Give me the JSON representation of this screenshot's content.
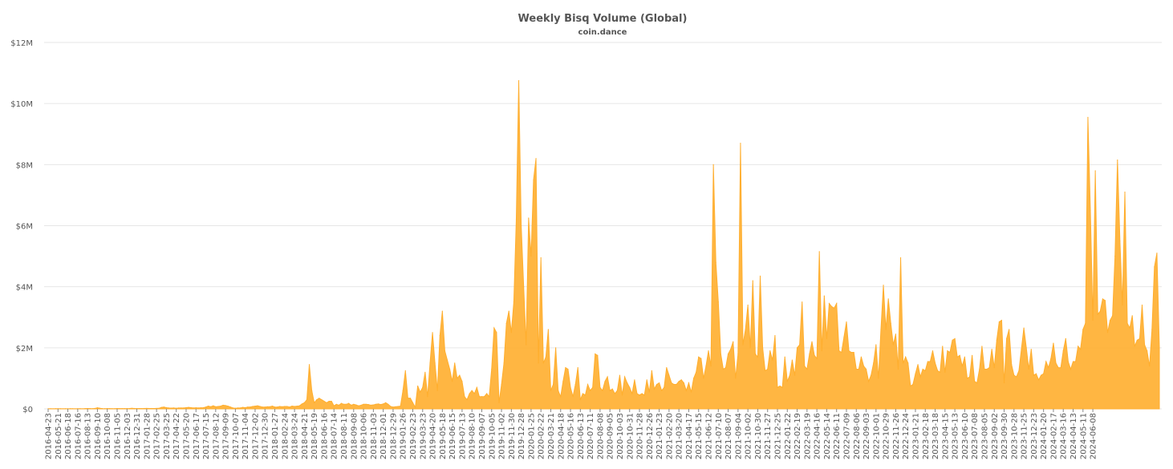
{
  "chart_data": {
    "type": "area",
    "title": "Weekly Bisq Volume (Global)",
    "subtitle": "coin.dance",
    "xlabel": "",
    "ylabel": "",
    "ylim": [
      0,
      12000000
    ],
    "yticks": [
      {
        "value": 0,
        "label": "$0"
      },
      {
        "value": 2000000,
        "label": "$2M"
      },
      {
        "value": 4000000,
        "label": "$4M"
      },
      {
        "value": 6000000,
        "label": "$6M"
      },
      {
        "value": 8000000,
        "label": "$8M"
      },
      {
        "value": 10000000,
        "label": "$10M"
      },
      {
        "value": 12000000,
        "label": "$12M"
      }
    ],
    "grid": true,
    "legend": "none",
    "color": "#ffae2e",
    "start_date": "2016-04-23",
    "x_tick_every": 4,
    "values": [
      0.003,
      0.005,
      0.004,
      0.006,
      0.005,
      0.005,
      0.004,
      0.005,
      0.004,
      0.006,
      0.005,
      0.004,
      0.005,
      0.006,
      0.004,
      0.009,
      0.012,
      0.01,
      0.008,
      0.015,
      0.035,
      0.02,
      0.01,
      0.008,
      0.011,
      0.009,
      0.007,
      0.008,
      0.012,
      0.01,
      0.009,
      0.011,
      0.01,
      0.012,
      0.018,
      0.014,
      0.011,
      0.012,
      0.01,
      0.013,
      0.015,
      0.013,
      0.014,
      0.012,
      0.015,
      0.018,
      0.05,
      0.06,
      0.04,
      0.03,
      0.025,
      0.03,
      0.02,
      0.03,
      0.03,
      0.03,
      0.04,
      0.05,
      0.04,
      0.03,
      0.035,
      0.03,
      0.035,
      0.04,
      0.06,
      0.09,
      0.07,
      0.1,
      0.07,
      0.08,
      0.09,
      0.12,
      0.11,
      0.09,
      0.06,
      0.03,
      0.02,
      0.03,
      0.03,
      0.05,
      0.04,
      0.06,
      0.06,
      0.08,
      0.09,
      0.1,
      0.08,
      0.06,
      0.06,
      0.07,
      0.07,
      0.09,
      0.06,
      0.06,
      0.08,
      0.07,
      0.08,
      0.08,
      0.06,
      0.09,
      0.08,
      0.09,
      0.1,
      0.16,
      0.2,
      0.3,
      1.45,
      0.6,
      0.2,
      0.3,
      0.35,
      0.3,
      0.25,
      0.2,
      0.25,
      0.25,
      0.1,
      0.15,
      0.12,
      0.18,
      0.15,
      0.15,
      0.18,
      0.12,
      0.15,
      0.13,
      0.1,
      0.12,
      0.15,
      0.15,
      0.14,
      0.12,
      0.13,
      0.15,
      0.16,
      0.14,
      0.16,
      0.2,
      0.15,
      0.08,
      0.06,
      0.07,
      0.08,
      0.09,
      0.6,
      1.25,
      0.35,
      0.35,
      0.2,
      0.05,
      0.75,
      0.55,
      0.7,
      1.2,
      0.4,
      1.5,
      2.5,
      1.5,
      0.6,
      2.4,
      3.2,
      1.9,
      1.6,
      1.3,
      0.9,
      1.5,
      1.0,
      1.1,
      0.9,
      0.4,
      0.3,
      0.5,
      0.6,
      0.5,
      0.7,
      0.4,
      0.4,
      0.4,
      0.5,
      0.4,
      1.3,
      2.65,
      2.5,
      0.2,
      0.8,
      1.5,
      2.8,
      3.2,
      2.5,
      3.5,
      6.2,
      10.75,
      6.0,
      4.0,
      2.1,
      6.25,
      5.0,
      7.5,
      8.2,
      1.5,
      4.95,
      1.5,
      1.7,
      2.6,
      0.6,
      0.8,
      2.0,
      0.6,
      0.4,
      0.9,
      1.35,
      1.3,
      0.7,
      0.4,
      0.8,
      1.35,
      0.3,
      0.5,
      0.45,
      0.8,
      0.6,
      0.7,
      1.8,
      1.75,
      0.7,
      0.6,
      0.9,
      1.05,
      0.6,
      0.65,
      0.5,
      0.6,
      1.1,
      0.45,
      1.05,
      0.85,
      0.7,
      0.5,
      0.95,
      0.5,
      0.45,
      0.5,
      0.45,
      0.95,
      0.55,
      1.25,
      0.65,
      0.8,
      0.85,
      0.6,
      0.7,
      1.35,
      1.1,
      0.85,
      0.8,
      0.8,
      0.9,
      0.95,
      0.85,
      0.6,
      0.85,
      0.55,
      1.0,
      1.2,
      1.7,
      1.65,
      1.0,
      1.4,
      1.9,
      1.4,
      8.0,
      4.8,
      3.5,
      1.8,
      1.3,
      1.35,
      1.8,
      1.95,
      2.2,
      1.0,
      1.8,
      8.7,
      2.1,
      2.6,
      3.4,
      2.0,
      4.2,
      1.8,
      1.7,
      4.35,
      2.0,
      1.25,
      1.3,
      1.9,
      1.6,
      2.4,
      0.7,
      0.75,
      0.7,
      1.7,
      0.9,
      1.1,
      1.6,
      1.1,
      2.0,
      2.1,
      3.5,
      1.4,
      1.3,
      1.8,
      2.2,
      1.75,
      1.65,
      5.15,
      1.9,
      3.7,
      2.3,
      3.45,
      3.35,
      3.3,
      3.45,
      1.9,
      1.85,
      2.35,
      2.85,
      1.9,
      1.85,
      1.85,
      1.3,
      1.3,
      1.7,
      1.4,
      1.3,
      0.9,
      1.1,
      1.5,
      2.1,
      1.0,
      2.6,
      4.05,
      2.6,
      3.6,
      2.8,
      2.1,
      2.45,
      1.3,
      4.95,
      1.5,
      1.7,
      1.5,
      0.75,
      0.8,
      1.15,
      1.45,
      1.05,
      1.3,
      1.25,
      1.55,
      1.55,
      1.9,
      1.5,
      1.25,
      1.2,
      2.05,
      1.2,
      1.9,
      1.85,
      2.25,
      2.3,
      1.7,
      1.75,
      1.4,
      1.7,
      1.0,
      1.05,
      1.75,
      0.9,
      0.85,
      1.3,
      2.05,
      1.3,
      1.3,
      1.35,
      1.95,
      1.35,
      2.25,
      2.85,
      2.9,
      0.85,
      2.3,
      2.6,
      1.45,
      1.1,
      1.05,
      1.25,
      1.95,
      2.65,
      2.0,
      1.3,
      1.95,
      1.1,
      1.15,
      0.95,
      1.1,
      1.15,
      1.55,
      1.35,
      1.65,
      2.15,
      1.5,
      1.35,
      1.35,
      1.9,
      2.3,
      1.55,
      1.3,
      1.55,
      1.55,
      2.05,
      1.95,
      2.6,
      2.8,
      9.55,
      6.5,
      2.9,
      7.8,
      3.1,
      3.2,
      3.6,
      3.55,
      2.5,
      2.9,
      3.05,
      5.0,
      8.15,
      5.5,
      3.4,
      7.1,
      2.8,
      2.65,
      3.05,
      2.05,
      2.25,
      2.3,
      3.4,
      2.1,
      1.9,
      1.4,
      2.6,
      4.65,
      5.1,
      2.0
    ],
    "value_unit": "USD millions",
    "x_tick_labels": [
      "2016-04-23",
      "2016-05-21",
      "2016-06-18",
      "2016-07-16",
      "2016-08-13",
      "2016-09-10",
      "2016-10-08",
      "2016-11-05",
      "2016-12-03",
      "2016-12-31",
      "2017-01-28",
      "2017-02-25",
      "2017-03-25",
      "2017-04-22",
      "2017-05-20",
      "2017-06-17",
      "2017-07-15",
      "2017-08-12",
      "2017-09-09",
      "2017-10-07",
      "2017-11-04",
      "2017-12-02",
      "2017-12-30",
      "2018-01-27",
      "2018-02-24",
      "2018-03-24",
      "2018-04-21",
      "2018-05-19",
      "2018-06-16",
      "2018-07-14",
      "2018-08-11",
      "2018-09-08",
      "2018-10-06",
      "2018-11-03",
      "2018-12-01",
      "2018-12-29",
      "2019-01-26",
      "2019-02-23",
      "2019-03-23",
      "2019-04-20",
      "2019-05-18",
      "2019-06-15",
      "2019-07-13",
      "2019-08-10",
      "2019-09-07",
      "2019-10-05",
      "2019-11-02",
      "2019-11-30",
      "2019-12-28",
      "2020-01-25",
      "2020-02-22",
      "2020-03-21",
      "2020-04-18",
      "2020-05-16",
      "2020-06-13",
      "2020-07-11",
      "2020-08-08",
      "2020-09-05",
      "2020-10-03",
      "2020-10-31",
      "2020-11-28",
      "2020-12-26",
      "2021-01-23",
      "2021-02-20",
      "2021-03-20",
      "2021-04-17",
      "2021-05-15",
      "2021-06-12",
      "2021-07-10",
      "2021-08-07",
      "2021-09-04",
      "2021-10-02",
      "2021-10-30",
      "2021-11-27",
      "2021-12-25",
      "2022-01-22",
      "2022-02-19",
      "2022-03-19",
      "2022-04-16",
      "2022-05-14",
      "2022-06-11",
      "2022-07-09",
      "2022-08-06",
      "2022-09-03",
      "2022-10-01",
      "2022-10-29",
      "2022-11-26",
      "2022-12-24",
      "2023-01-21",
      "2023-02-18",
      "2023-03-18",
      "2023-04-15",
      "2023-05-13",
      "2023-06-10",
      "2023-07-08",
      "2023-08-05",
      "2023-09-02",
      "2023-09-30",
      "2023-10-28",
      "2023-11-25",
      "2023-12-23",
      "2024-01-20",
      "2024-02-17",
      "2024-03-16",
      "2024-04-13",
      "2024-05-11",
      "2024-06-08"
    ]
  }
}
